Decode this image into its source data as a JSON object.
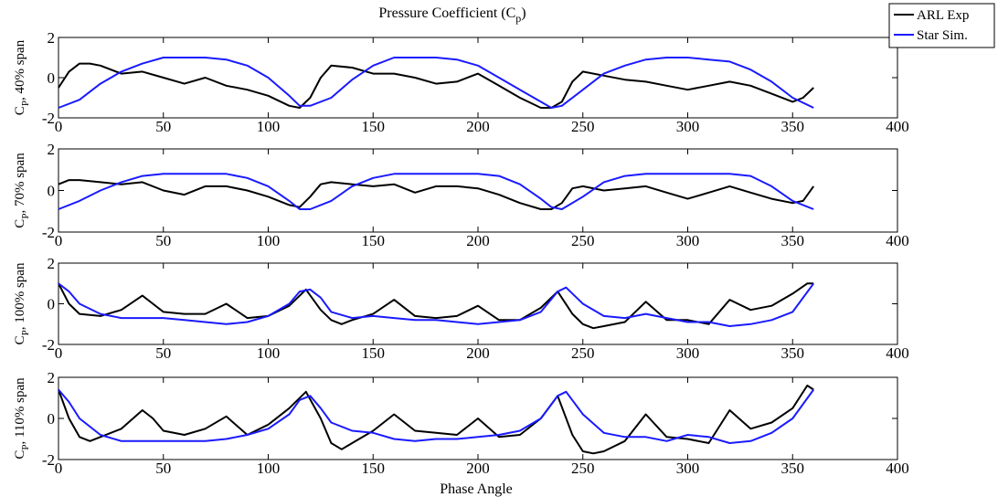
{
  "figure": {
    "title_main": "Pressure Coefficient (C",
    "title_sub": "p",
    "title_close": ")",
    "xlabel": "Phase Angle"
  },
  "legend": {
    "items": [
      {
        "label": "ARL Exp",
        "color": "#000000"
      },
      {
        "label": "Star Sim.",
        "color": "#1a1aff"
      }
    ]
  },
  "chart_data": [
    {
      "type": "line",
      "ylabel_main": "C",
      "ylabel_sub": "P",
      "ylabel_rest": ", 40% span",
      "xlim": [
        0,
        400
      ],
      "ylim": [
        -2,
        2
      ],
      "xticks": [
        "0",
        "50",
        "100",
        "150",
        "200",
        "250",
        "300",
        "350",
        "400"
      ],
      "yticks": [
        "2",
        "0",
        "-2"
      ],
      "series": [
        {
          "name": "ARL Exp",
          "color": "#000000",
          "x": [
            0,
            5,
            10,
            15,
            20,
            30,
            40,
            50,
            60,
            70,
            80,
            90,
            100,
            110,
            115,
            120,
            125,
            130,
            140,
            150,
            160,
            170,
            180,
            190,
            200,
            210,
            220,
            230,
            235,
            240,
            245,
            250,
            260,
            270,
            280,
            290,
            300,
            310,
            320,
            330,
            340,
            350,
            355,
            360
          ],
          "y": [
            -0.5,
            0.3,
            0.7,
            0.7,
            0.6,
            0.2,
            0.3,
            0.0,
            -0.3,
            0.0,
            -0.4,
            -0.6,
            -0.9,
            -1.4,
            -1.5,
            -1.0,
            0.0,
            0.6,
            0.5,
            0.2,
            0.2,
            0.0,
            -0.3,
            -0.2,
            0.2,
            -0.4,
            -1.0,
            -1.5,
            -1.5,
            -1.2,
            -0.2,
            0.3,
            0.1,
            -0.1,
            -0.2,
            -0.4,
            -0.6,
            -0.4,
            -0.2,
            -0.4,
            -0.8,
            -1.2,
            -1.0,
            -0.5
          ]
        },
        {
          "name": "Star Sim.",
          "color": "#1a1aff",
          "x": [
            0,
            10,
            20,
            30,
            40,
            50,
            60,
            70,
            80,
            90,
            100,
            110,
            115,
            120,
            130,
            140,
            150,
            160,
            170,
            180,
            190,
            200,
            210,
            220,
            230,
            235,
            240,
            250,
            260,
            270,
            280,
            290,
            300,
            310,
            320,
            330,
            340,
            350,
            360
          ],
          "y": [
            -1.5,
            -1.1,
            -0.3,
            0.3,
            0.7,
            1.0,
            1.0,
            1.0,
            0.9,
            0.6,
            0.0,
            -0.9,
            -1.4,
            -1.4,
            -1.0,
            -0.1,
            0.6,
            1.0,
            1.0,
            1.0,
            0.9,
            0.6,
            0.0,
            -0.6,
            -1.2,
            -1.5,
            -1.4,
            -0.6,
            0.2,
            0.6,
            0.9,
            1.0,
            1.0,
            0.9,
            0.8,
            0.4,
            -0.2,
            -1.0,
            -1.5
          ]
        }
      ]
    },
    {
      "type": "line",
      "ylabel_main": "C",
      "ylabel_sub": "P",
      "ylabel_rest": ", 70% span",
      "xlim": [
        0,
        400
      ],
      "ylim": [
        -2,
        2
      ],
      "xticks": [
        "0",
        "50",
        "100",
        "150",
        "200",
        "250",
        "300",
        "350",
        "400"
      ],
      "yticks": [
        "2",
        "0",
        "-2"
      ],
      "series": [
        {
          "name": "ARL Exp",
          "color": "#000000",
          "x": [
            0,
            5,
            10,
            20,
            30,
            40,
            50,
            60,
            70,
            80,
            90,
            100,
            110,
            115,
            120,
            125,
            130,
            140,
            150,
            160,
            170,
            180,
            190,
            200,
            210,
            220,
            230,
            235,
            240,
            245,
            250,
            260,
            270,
            280,
            290,
            300,
            310,
            320,
            330,
            340,
            350,
            355,
            360
          ],
          "y": [
            0.3,
            0.5,
            0.5,
            0.4,
            0.3,
            0.4,
            0.0,
            -0.2,
            0.2,
            0.2,
            0.0,
            -0.3,
            -0.7,
            -0.8,
            -0.3,
            0.3,
            0.4,
            0.3,
            0.2,
            0.3,
            -0.1,
            0.2,
            0.2,
            0.1,
            -0.2,
            -0.6,
            -0.9,
            -0.9,
            -0.6,
            0.1,
            0.2,
            0.0,
            0.1,
            0.2,
            -0.1,
            -0.4,
            -0.1,
            0.2,
            -0.1,
            -0.4,
            -0.6,
            -0.5,
            0.2
          ]
        },
        {
          "name": "Star Sim.",
          "color": "#1a1aff",
          "x": [
            0,
            10,
            20,
            30,
            40,
            50,
            60,
            70,
            80,
            90,
            100,
            110,
            115,
            120,
            130,
            140,
            150,
            160,
            170,
            180,
            190,
            200,
            210,
            220,
            230,
            235,
            240,
            250,
            260,
            270,
            280,
            290,
            300,
            310,
            320,
            330,
            340,
            350,
            360
          ],
          "y": [
            -0.9,
            -0.5,
            0.0,
            0.4,
            0.7,
            0.8,
            0.8,
            0.8,
            0.8,
            0.6,
            0.2,
            -0.5,
            -0.9,
            -0.9,
            -0.5,
            0.2,
            0.6,
            0.8,
            0.8,
            0.8,
            0.8,
            0.8,
            0.7,
            0.3,
            -0.4,
            -0.8,
            -0.9,
            -0.3,
            0.4,
            0.7,
            0.8,
            0.8,
            0.8,
            0.8,
            0.8,
            0.7,
            0.2,
            -0.5,
            -0.9
          ]
        }
      ]
    },
    {
      "type": "line",
      "ylabel_main": "C",
      "ylabel_sub": "P",
      "ylabel_rest": ", 100% span",
      "xlim": [
        0,
        400
      ],
      "ylim": [
        -2,
        2
      ],
      "xticks": [
        "0",
        "50",
        "100",
        "150",
        "200",
        "250",
        "300",
        "350",
        "400"
      ],
      "yticks": [
        "2",
        "0",
        "-2"
      ],
      "series": [
        {
          "name": "ARL Exp",
          "color": "#000000",
          "x": [
            0,
            5,
            10,
            20,
            30,
            40,
            45,
            50,
            60,
            70,
            80,
            90,
            100,
            110,
            118,
            125,
            130,
            135,
            140,
            150,
            160,
            170,
            180,
            190,
            200,
            210,
            220,
            230,
            238,
            245,
            250,
            255,
            260,
            270,
            280,
            290,
            300,
            310,
            320,
            330,
            340,
            350,
            357,
            360
          ],
          "y": [
            1.0,
            0.0,
            -0.5,
            -0.6,
            -0.3,
            0.4,
            0.0,
            -0.4,
            -0.5,
            -0.5,
            0.0,
            -0.7,
            -0.6,
            -0.1,
            0.7,
            -0.3,
            -0.8,
            -1.0,
            -0.8,
            -0.5,
            0.2,
            -0.6,
            -0.7,
            -0.6,
            -0.1,
            -0.8,
            -0.8,
            -0.2,
            0.6,
            -0.5,
            -1.0,
            -1.2,
            -1.1,
            -0.9,
            0.1,
            -0.8,
            -0.8,
            -1.0,
            0.2,
            -0.3,
            -0.1,
            0.5,
            1.0,
            1.0
          ]
        },
        {
          "name": "Star Sim.",
          "color": "#1a1aff",
          "x": [
            0,
            5,
            10,
            20,
            30,
            40,
            50,
            60,
            70,
            80,
            90,
            100,
            110,
            115,
            120,
            125,
            130,
            140,
            150,
            160,
            170,
            180,
            190,
            200,
            210,
            220,
            230,
            238,
            242,
            250,
            260,
            270,
            280,
            290,
            300,
            310,
            320,
            330,
            340,
            350,
            360
          ],
          "y": [
            1.0,
            0.6,
            0.0,
            -0.5,
            -0.7,
            -0.7,
            -0.7,
            -0.8,
            -0.9,
            -1.0,
            -0.9,
            -0.6,
            0.0,
            0.6,
            0.7,
            0.3,
            -0.4,
            -0.7,
            -0.6,
            -0.7,
            -0.8,
            -0.8,
            -0.9,
            -1.0,
            -0.9,
            -0.8,
            -0.4,
            0.6,
            0.8,
            0.0,
            -0.6,
            -0.7,
            -0.5,
            -0.7,
            -0.9,
            -0.9,
            -1.1,
            -1.0,
            -0.8,
            -0.4,
            1.0
          ]
        }
      ]
    },
    {
      "type": "line",
      "ylabel_main": "C",
      "ylabel_sub": "P",
      "ylabel_rest": ", 110% span",
      "xlim": [
        0,
        400
      ],
      "ylim": [
        -2,
        2
      ],
      "xticks": [
        "0",
        "50",
        "100",
        "150",
        "200",
        "250",
        "300",
        "350",
        "400"
      ],
      "yticks": [
        "2",
        "0",
        "-2"
      ],
      "series": [
        {
          "name": "ARL Exp",
          "color": "#000000",
          "x": [
            0,
            5,
            10,
            15,
            20,
            30,
            40,
            45,
            50,
            60,
            70,
            80,
            90,
            100,
            110,
            118,
            125,
            130,
            135,
            140,
            150,
            160,
            170,
            180,
            190,
            200,
            210,
            220,
            230,
            238,
            245,
            250,
            255,
            260,
            270,
            280,
            290,
            300,
            310,
            320,
            330,
            340,
            350,
            357,
            360
          ],
          "y": [
            1.4,
            0.0,
            -0.9,
            -1.1,
            -0.9,
            -0.5,
            0.4,
            0.0,
            -0.6,
            -0.8,
            -0.5,
            0.1,
            -0.8,
            -0.3,
            0.5,
            1.3,
            0.0,
            -1.2,
            -1.5,
            -1.2,
            -0.6,
            0.2,
            -0.6,
            -0.7,
            -0.8,
            0.0,
            -0.9,
            -0.8,
            0.0,
            1.1,
            -0.8,
            -1.6,
            -1.7,
            -1.6,
            -1.1,
            0.2,
            -0.9,
            -1.0,
            -1.2,
            0.4,
            -0.5,
            -0.2,
            0.5,
            1.6,
            1.4
          ]
        },
        {
          "name": "Star Sim.",
          "color": "#1a1aff",
          "x": [
            0,
            5,
            10,
            20,
            30,
            40,
            50,
            60,
            70,
            80,
            90,
            100,
            110,
            115,
            120,
            125,
            130,
            140,
            150,
            160,
            170,
            180,
            190,
            200,
            210,
            220,
            230,
            238,
            242,
            250,
            260,
            270,
            280,
            290,
            300,
            310,
            320,
            330,
            340,
            350,
            360
          ],
          "y": [
            1.4,
            0.8,
            0.0,
            -0.8,
            -1.1,
            -1.1,
            -1.1,
            -1.1,
            -1.1,
            -1.0,
            -0.8,
            -0.5,
            0.2,
            0.9,
            1.1,
            0.5,
            -0.2,
            -0.6,
            -0.7,
            -1.0,
            -1.1,
            -1.0,
            -1.0,
            -0.9,
            -0.8,
            -0.6,
            0.0,
            1.1,
            1.3,
            0.2,
            -0.7,
            -0.9,
            -0.9,
            -1.1,
            -0.8,
            -0.9,
            -1.2,
            -1.1,
            -0.7,
            0.0,
            1.4
          ]
        }
      ]
    }
  ]
}
